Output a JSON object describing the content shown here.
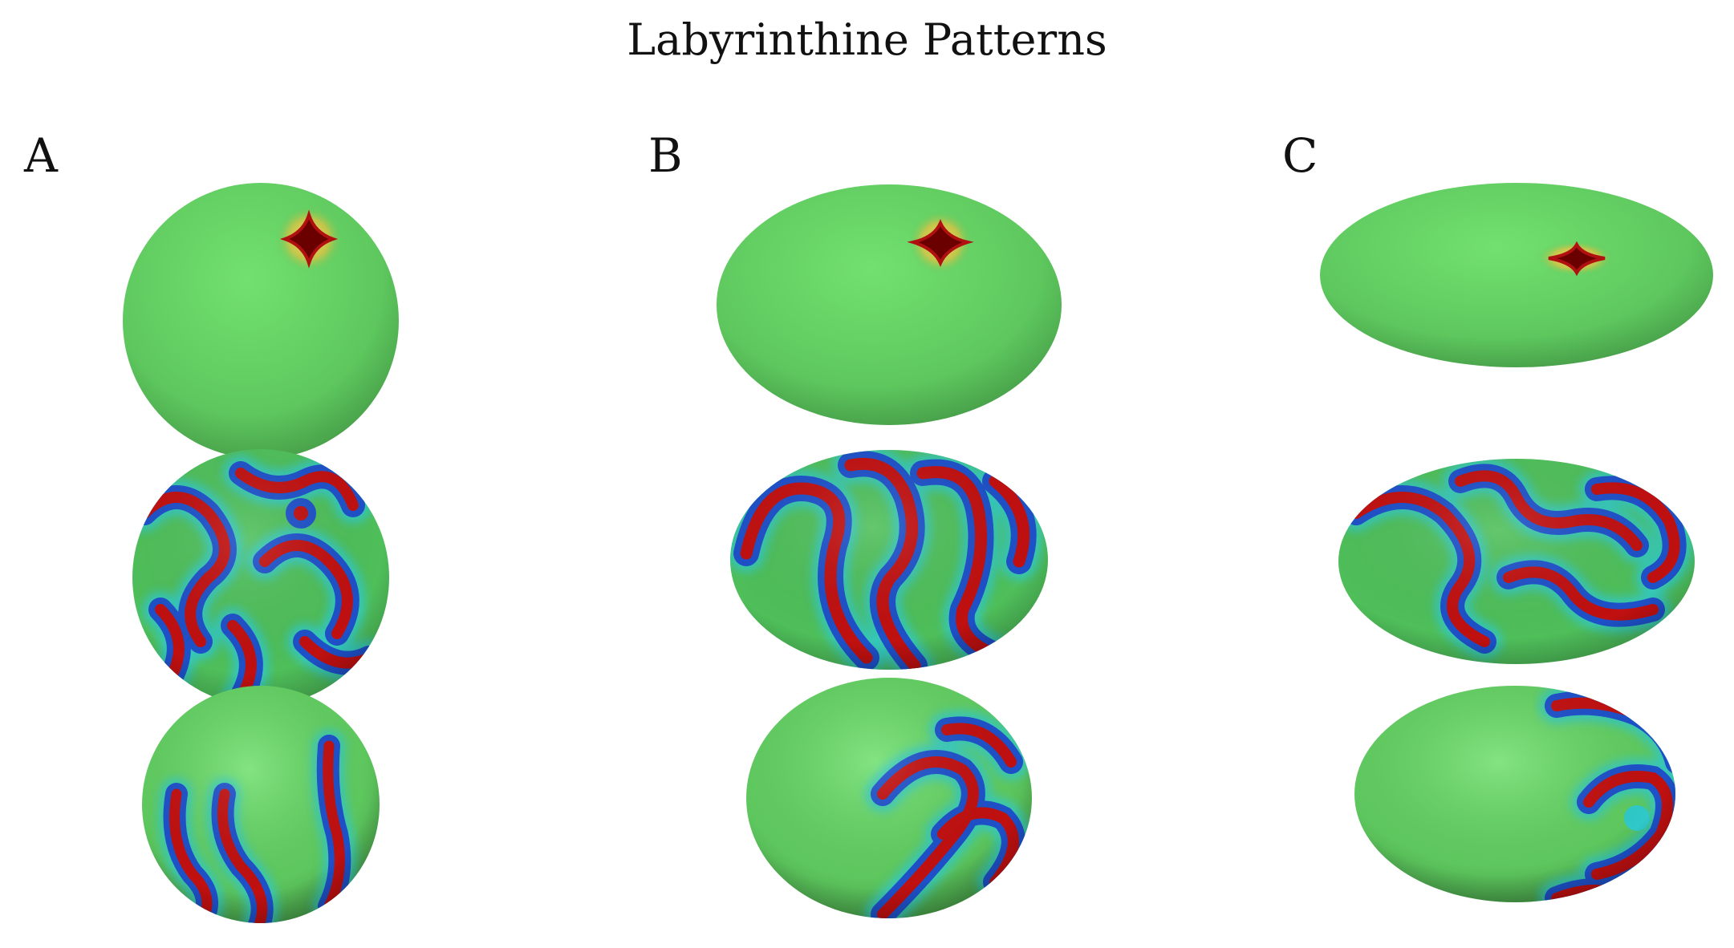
{
  "figure": {
    "title": "Labyrinthine Patterns",
    "panels": [
      {
        "label": "A",
        "views": [
          "spot",
          "labyrinth",
          "partial-stripes"
        ]
      },
      {
        "label": "B",
        "views": [
          "spot",
          "labyrinth",
          "partial-stripes"
        ]
      },
      {
        "label": "C",
        "views": [
          "spot",
          "labyrinth",
          "partial-stripes"
        ]
      }
    ]
  },
  "colors": {
    "background": "#ffffff",
    "surface_green": "#5fce5f",
    "pattern_red": "#c01010",
    "pattern_blue": "#1e50c8",
    "pattern_cyan": "#30c8c8",
    "spot_dark": "#6a0000"
  }
}
